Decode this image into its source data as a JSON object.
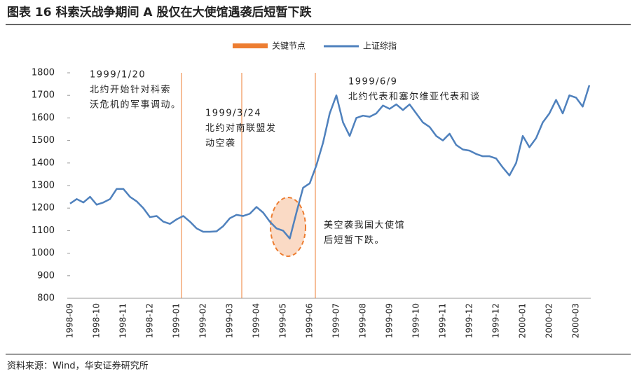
{
  "chart_data": {
    "type": "line",
    "title": "图表 16 科索沃战争期间 A 股仅在大使馆遇袭后短暂下跌",
    "source": "资料来源：Wind，华安证券研究所",
    "categories": [
      "1998-09",
      null,
      null,
      null,
      "1998-10",
      null,
      null,
      null,
      "1998-11",
      null,
      null,
      null,
      "1998-12",
      null,
      null,
      null,
      "1999-01",
      null,
      null,
      null,
      "1999-02",
      null,
      null,
      null,
      "1999-03",
      null,
      null,
      null,
      "1999-04",
      null,
      null,
      null,
      "1999-05",
      null,
      null,
      null,
      "1999-06",
      null,
      null,
      null,
      "1999-07",
      null,
      null,
      null,
      "1999-08",
      null,
      null,
      null,
      "1999-09",
      null,
      null,
      null,
      "1999-10",
      null,
      null,
      null,
      "1999-11",
      null,
      null,
      null,
      "1999-12",
      null,
      null,
      null,
      "1999-12",
      null,
      null,
      null,
      "2000-01",
      null,
      null,
      null,
      "2000-02",
      null,
      null,
      null,
      "2000-03",
      null,
      null
    ],
    "series": [
      {
        "name": "关键节点",
        "color": "#ed7d31"
      },
      {
        "name": "上证综指",
        "color": "#4f81bd",
        "values": [
          1220,
          1240,
          1225,
          1250,
          1215,
          1225,
          1240,
          1285,
          1285,
          1250,
          1230,
          1200,
          1160,
          1165,
          1140,
          1130,
          1150,
          1165,
          1140,
          1110,
          1095,
          1095,
          1097,
          1120,
          1155,
          1170,
          1165,
          1175,
          1205,
          1180,
          1140,
          1110,
          1100,
          1065,
          1180,
          1290,
          1310,
          1390,
          1490,
          1620,
          1700,
          1580,
          1520,
          1600,
          1610,
          1605,
          1620,
          1655,
          1640,
          1660,
          1635,
          1660,
          1620,
          1580,
          1560,
          1520,
          1500,
          1530,
          1480,
          1460,
          1455,
          1440,
          1430,
          1430,
          1420,
          1380,
          1345,
          1400,
          1520,
          1470,
          1510,
          1580,
          1620,
          1680,
          1620,
          1700,
          1690,
          1650,
          1745
        ]
      }
    ],
    "ylim": [
      800,
      1800
    ],
    "yticks": [
      800,
      900,
      1000,
      1100,
      1200,
      1300,
      1400,
      1500,
      1600,
      1700,
      1800
    ],
    "annotations": [
      {
        "lines": [
          "1999/1/20",
          "北约开始针对科索",
          "沃危机的军事调动。"
        ],
        "color": "#222222"
      },
      {
        "lines": [
          "1999/3/24",
          "北约对南联盟发",
          "动空袭"
        ],
        "color": "#c00000"
      },
      {
        "lines": [
          "1999/6/9",
          "北约代表和塞尔维亚代表和谈"
        ],
        "color": "#222222"
      },
      {
        "lines": [
          "美空袭我国大使馆",
          "后短暂下跌。"
        ],
        "color": "#e07b39"
      }
    ]
  }
}
